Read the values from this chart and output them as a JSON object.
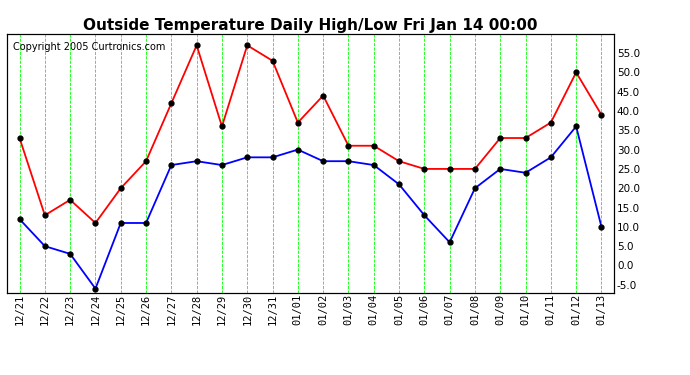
{
  "title": "Outside Temperature Daily High/Low Fri Jan 14 00:00",
  "copyright_text": "Copyright 2005 Curtronics.com",
  "labels": [
    "12/21",
    "12/22",
    "12/23",
    "12/24",
    "12/25",
    "12/26",
    "12/27",
    "12/28",
    "12/29",
    "12/30",
    "12/31",
    "01/01",
    "01/02",
    "01/03",
    "01/04",
    "01/05",
    "01/06",
    "01/07",
    "01/08",
    "01/09",
    "01/10",
    "01/11",
    "01/12",
    "01/13"
  ],
  "high_values": [
    33,
    13,
    17,
    11,
    20,
    27,
    42,
    57,
    36,
    57,
    53,
    37,
    44,
    31,
    31,
    27,
    25,
    25,
    25,
    33,
    33,
    37,
    50,
    39
  ],
  "low_values": [
    12,
    5,
    3,
    -6,
    11,
    11,
    26,
    27,
    26,
    28,
    28,
    30,
    27,
    27,
    26,
    21,
    13,
    6,
    20,
    25,
    24,
    28,
    36,
    10
  ],
  "high_color": "#FF0000",
  "low_color": "#0000FF",
  "marker_color": "#000000",
  "bg_color": "#FFFFFF",
  "plot_bg_color": "#FFFFFF",
  "grid_color": "#00FF00",
  "title_color": "#000000",
  "copyright_color": "#000000",
  "ylim": [
    -7,
    60
  ],
  "yticks": [
    -5.0,
    0.0,
    5.0,
    10.0,
    15.0,
    20.0,
    25.0,
    30.0,
    35.0,
    40.0,
    45.0,
    50.0,
    55.0
  ],
  "title_fontsize": 11,
  "tick_fontsize": 7.5,
  "copyright_fontsize": 7,
  "line_width": 1.3,
  "marker_size": 3.5
}
